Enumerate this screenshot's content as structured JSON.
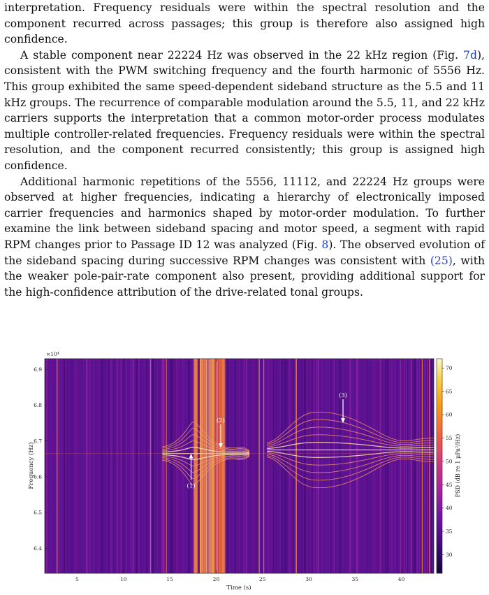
{
  "paragraphs": [
    {
      "indent": false,
      "segments": [
        {
          "t": "interpretation. Frequency residuals were within the spectral resolution and the component recurred across passages; this group is therefore also assigned high confidence."
        }
      ]
    },
    {
      "indent": true,
      "segments": [
        {
          "t": "A stable component near 22224 Hz was observed in the 22 kHz region (Fig. "
        },
        {
          "t": "7d",
          "ref": true
        },
        {
          "t": "), consistent with the PWM switching frequency and the fourth harmonic of 5556 Hz. This group exhibited the same speed-dependent sideband structure as the 5.5 and 11 kHz groups. The recurrence of comparable modulation around the 5.5, 11, and 22 kHz carriers supports the interpretation that a common motor-order process modulates multiple controller-related frequencies. Frequency residuals were within the spectral resolution, and the component recurred consistently; this group is assigned high confidence."
        }
      ]
    },
    {
      "indent": true,
      "segments": [
        {
          "t": "Additional harmonic repetitions of the 5556, 11112, and 22224 Hz groups were observed at higher frequencies, indicating a hierarchy of electronically imposed carrier frequencies and harmonics shaped by motor-order modulation. To further examine the link between sideband spacing and motor speed, a segment with rapid RPM changes prior to Passage ID 12 was analyzed (Fig. "
        },
        {
          "t": "8",
          "ref": true
        },
        {
          "t": "). The observed evolution of the sideband spacing during successive RPM changes was consistent with "
        },
        {
          "t": "(25)",
          "ref": true
        },
        {
          "t": ", with the weaker pole-pair-rate component also present, providing additional support for the high-confidence attribution of the drive-related tonal groups."
        }
      ]
    }
  ],
  "figure": {
    "y_multiplier": "×10⁴",
    "ylabel": "Frequency (Hz)",
    "xlabel": "Time (s)",
    "colorbar_label": "PSD (dB re 1 μPa²/Hz)",
    "annotations": [
      {
        "label": "(1)",
        "direction": "up"
      },
      {
        "label": "(2)",
        "direction": "down"
      },
      {
        "label": "(3)",
        "direction": "down"
      }
    ]
  },
  "chart_data": {
    "type": "heatmap",
    "xlabel": "Time (s)",
    "ylabel": "Frequency (Hz)",
    "y_scale_factor": "×10⁴",
    "xlim": [
      1.5,
      43.5
    ],
    "ylim": [
      6.33,
      6.93
    ],
    "x_ticks": [
      5,
      10,
      15,
      20,
      25,
      30,
      35,
      40
    ],
    "y_ticks": [
      6.4,
      6.5,
      6.6,
      6.7,
      6.8,
      6.9
    ],
    "colorbar": {
      "label": "PSD (dB re 1 μPa²/Hz)",
      "ticks": [
        30,
        35,
        40,
        45,
        50,
        55,
        60,
        65,
        70
      ],
      "range": [
        26,
        72
      ],
      "colormap": [
        "#130636",
        "#3a0a6e",
        "#6a14a0",
        "#a0249c",
        "#cf3c7c",
        "#ef6440",
        "#f89a18",
        "#f8cf48",
        "#fbf7c8"
      ]
    },
    "annotations": [
      {
        "label": "(1)",
        "time": 17.3,
        "freq": 6.665
      },
      {
        "label": "(2)",
        "time": 20.5,
        "freq": 6.68
      },
      {
        "label": "(3)",
        "time": 33.7,
        "freq": 6.75
      }
    ]
  }
}
